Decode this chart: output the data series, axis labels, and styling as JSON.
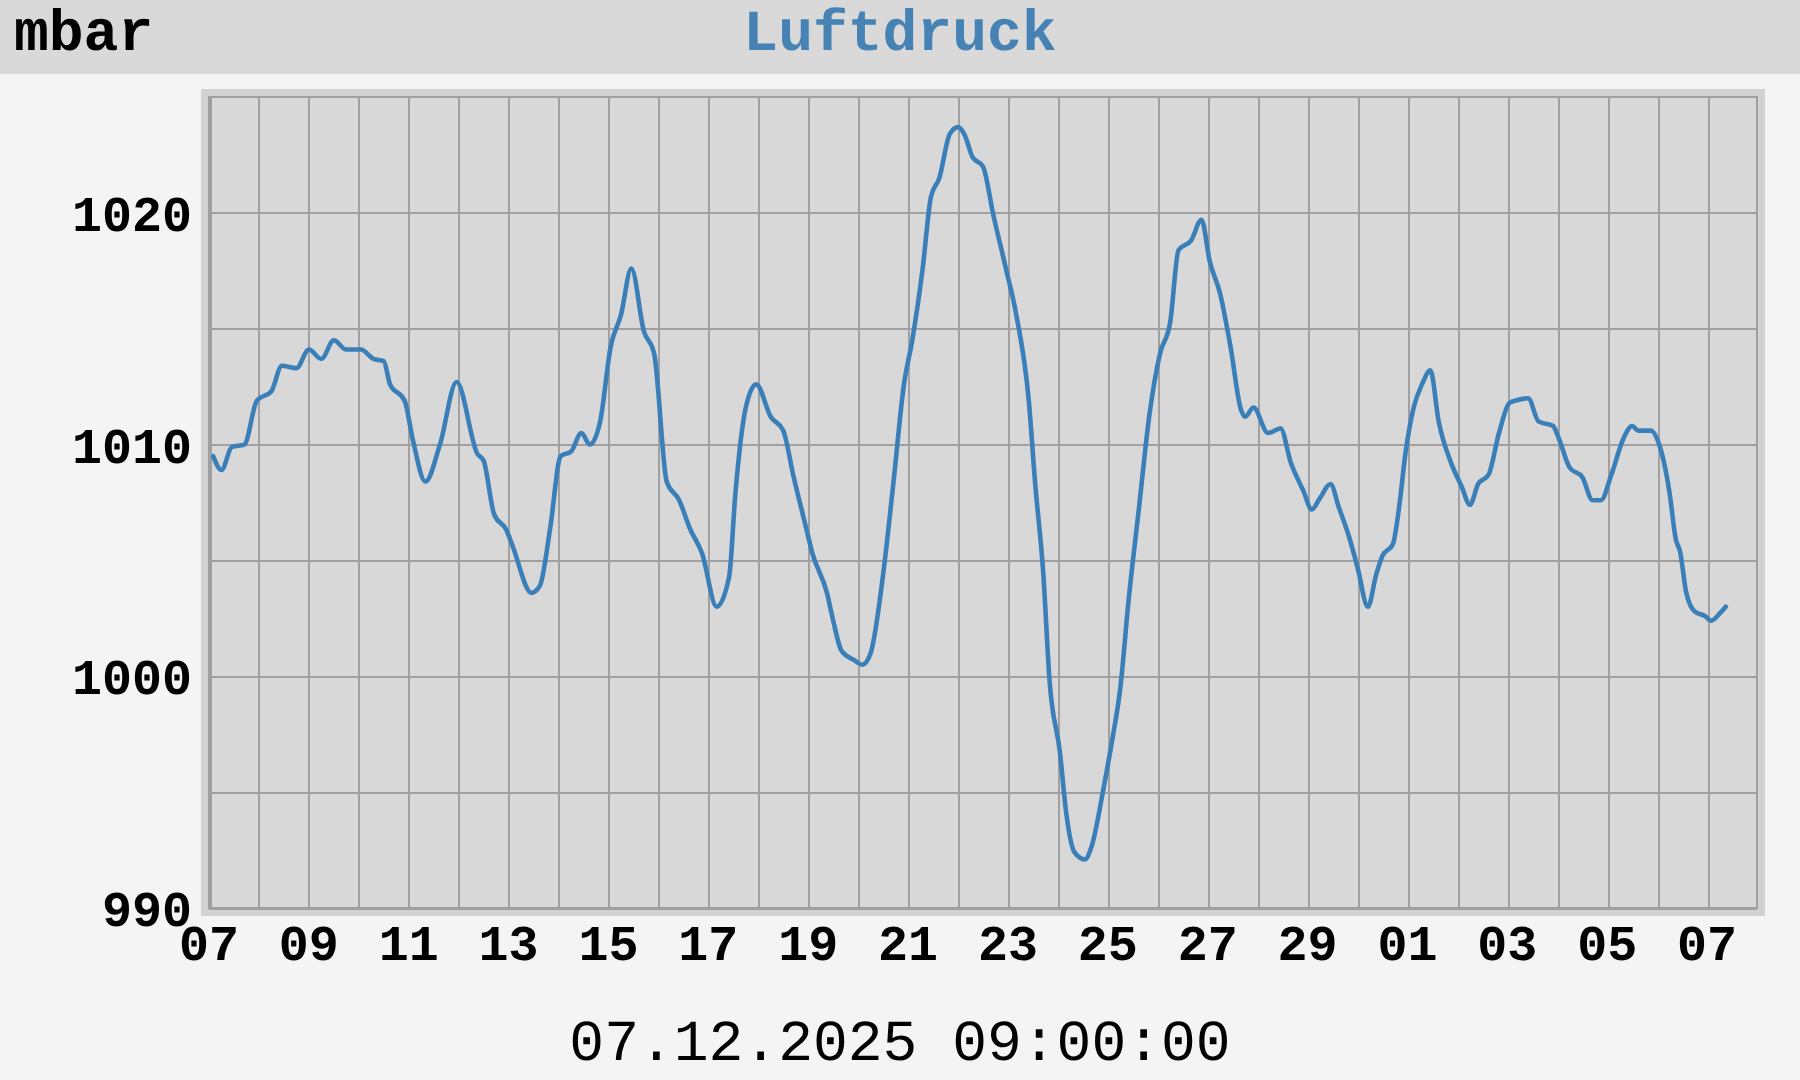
{
  "chart_data": {
    "type": "line",
    "title": "Luftdruck",
    "ylabel": "mbar",
    "annotations": [
      "07.12.2025 09:00:00"
    ],
    "x": [
      "2025-11-07T02:00",
      "2025-11-07T06:00",
      "2025-11-07T11:00",
      "2025-11-07T17:00",
      "2025-11-07T23:00",
      "2025-11-08T06:00",
      "2025-11-08T11:00",
      "2025-11-08T18:00",
      "2025-11-09T00:00",
      "2025-11-09T06:00",
      "2025-11-09T12:00",
      "2025-11-09T18:00",
      "2025-11-10T01:00",
      "2025-11-10T07:00",
      "2025-11-10T12:00",
      "2025-11-10T15:00",
      "2025-11-10T22:00",
      "2025-11-11T02:00",
      "2025-11-11T08:00",
      "2025-11-11T15:00",
      "2025-11-11T23:00",
      "2025-11-12T09:00",
      "2025-11-12T12:00",
      "2025-11-12T17:00",
      "2025-11-12T23:00",
      "2025-11-13T02:00",
      "2025-11-13T11:00",
      "2025-11-13T15:00",
      "2025-11-13T20:00",
      "2025-11-14T01:00",
      "2025-11-14T06:00",
      "2025-11-14T11:00",
      "2025-11-14T15:00",
      "2025-11-14T20:00",
      "2025-11-15T01:00",
      "2025-11-15T06:00",
      "2025-11-15T11:00",
      "2025-11-15T17:00",
      "2025-11-15T22:00",
      "2025-11-16T04:00",
      "2025-11-16T10:00",
      "2025-11-16T15:00",
      "2025-11-16T21:00",
      "2025-11-17T04:00",
      "2025-11-17T10:00",
      "2025-11-17T13:00",
      "2025-11-17T18:00",
      "2025-11-17T23:00",
      "2025-11-18T06:00",
      "2025-11-18T12:00",
      "2025-11-18T17:00",
      "2025-11-18T23:00",
      "2025-11-19T02:00",
      "2025-11-19T09:00",
      "2025-11-19T12:00",
      "2025-11-19T16:00",
      "2025-11-19T22:00",
      "2025-11-20T02:00",
      "2025-11-20T06:00",
      "2025-11-20T12:00",
      "2025-11-20T17:00",
      "2025-11-20T22:00",
      "2025-11-21T02:00",
      "2025-11-21T07:00",
      "2025-11-21T11:00",
      "2025-11-21T15:00",
      "2025-11-21T20:00",
      "2025-11-22T00:00",
      "2025-11-22T03:00",
      "2025-11-22T07:00",
      "2025-11-22T12:00",
      "2025-11-22T17:00",
      "2025-11-22T23:00",
      "2025-11-23T04:00",
      "2025-11-23T10:00",
      "2025-11-23T13:00",
      "2025-11-23T17:00",
      "2025-11-23T20:00",
      "2025-11-24T01:00",
      "2025-11-24T04:00",
      "2025-11-24T08:00",
      "2025-11-24T13:00",
      "2025-11-24T16:00",
      "2025-11-24T22:00",
      "2025-11-25T02:00",
      "2025-11-25T06:00",
      "2025-11-25T10:00",
      "2025-11-25T15:00",
      "2025-11-25T20:00",
      "2025-11-26T01:00",
      "2025-11-26T06:00",
      "2025-11-26T10:00",
      "2025-11-26T16:00",
      "2025-11-26T21:00",
      "2025-11-27T01:00",
      "2025-11-27T06:00",
      "2025-11-27T11:00",
      "2025-11-27T16:00",
      "2025-11-27T18:00",
      "2025-11-27T22:00",
      "2025-11-28T05:00",
      "2025-11-28T11:00",
      "2025-11-28T16:00",
      "2025-11-28T22:00",
      "2025-11-29T02:00",
      "2025-11-29T06:00",
      "2025-11-29T11:00",
      "2025-11-29T15:00",
      "2025-11-29T20:00",
      "2025-11-30T00:00",
      "2025-11-30T05:00",
      "2025-11-30T09:00",
      "2025-11-30T12:00",
      "2025-11-30T17:00",
      "2025-11-30T20:00",
      "2025-11-30T23:00",
      "2025-12-01T03:00",
      "2025-12-01T07:00",
      "2025-12-01T11:00",
      "2025-12-01T15:00",
      "2025-12-01T21:00",
      "2025-12-02T02:00",
      "2025-12-02T06:00",
      "2025-12-02T10:00",
      "2025-12-02T15:00",
      "2025-12-02T20:00",
      "2025-12-03T01:00",
      "2025-12-03T04:00",
      "2025-12-03T10:00",
      "2025-12-03T15:00",
      "2025-12-03T22:00",
      "2025-12-04T01:00",
      "2025-12-04T06:00",
      "2025-12-04T12:00",
      "2025-12-04T17:00",
      "2025-12-04T21:00",
      "2025-12-05T02:00",
      "2025-12-05T08:00",
      "2025-12-05T12:00",
      "2025-12-05T15:00",
      "2025-12-05T21:00",
      "2025-12-06T01:00",
      "2025-12-06T06:00",
      "2025-12-06T09:00",
      "2025-12-06T11:00",
      "2025-12-06T14:00",
      "2025-12-06T18:00",
      "2025-12-06T23:00",
      "2025-12-07T02:00",
      "2025-12-07T06:00",
      "2025-12-07T09:00"
    ],
    "series": [
      {
        "color": "#3b7fb9",
        "values": [
          1009.5,
          1008.9,
          1009.9,
          1010.0,
          1011.9,
          1012.3,
          1013.4,
          1013.3,
          1014.1,
          1013.7,
          1014.5,
          1014.1,
          1014.1,
          1013.7,
          1013.6,
          1012.6,
          1011.9,
          1010.2,
          1008.4,
          1010.0,
          1012.7,
          1009.6,
          1009.3,
          1007.0,
          1006.3,
          1005.6,
          1003.6,
          1003.9,
          1006.4,
          1009.5,
          1009.7,
          1010.5,
          1010.0,
          1011.0,
          1014.2,
          1015.6,
          1017.6,
          1014.9,
          1013.9,
          1008.4,
          1007.6,
          1006.4,
          1005.3,
          1003.0,
          1004.3,
          1007.9,
          1011.6,
          1012.6,
          1011.2,
          1010.6,
          1008.6,
          1006.4,
          1005.3,
          1003.6,
          1002.4,
          1001.1,
          1000.7,
          1000.5,
          1001.0,
          1004.4,
          1008.4,
          1012.6,
          1014.5,
          1017.6,
          1020.7,
          1021.5,
          1023.4,
          1023.7,
          1023.4,
          1022.4,
          1022.0,
          1019.9,
          1017.6,
          1015.6,
          1011.9,
          1008.4,
          1004.4,
          999.8,
          996.7,
          994.1,
          992.4,
          992.1,
          992.6,
          995.2,
          997.2,
          999.5,
          1003.3,
          1007.3,
          1011.3,
          1013.9,
          1015.3,
          1018.4,
          1018.8,
          1019.7,
          1017.9,
          1016.5,
          1014.2,
          1011.5,
          1011.2,
          1011.6,
          1010.5,
          1010.7,
          1009.2,
          1008.0,
          1007.2,
          1007.7,
          1008.3,
          1007.3,
          1006.0,
          1004.7,
          1003.0,
          1004.4,
          1005.2,
          1005.7,
          1007.3,
          1009.6,
          1011.6,
          1012.6,
          1013.2,
          1011.0,
          1009.2,
          1008.2,
          1007.4,
          1008.3,
          1008.7,
          1010.5,
          1011.8,
          1011.9,
          1012.0,
          1011.0,
          1010.8,
          1010.2,
          1009.0,
          1008.6,
          1007.6,
          1007.6,
          1008.7,
          1010.3,
          1010.8,
          1010.6,
          1010.6,
          1010.0,
          1007.9,
          1005.9,
          1005.4,
          1003.6,
          1002.8,
          1002.6,
          1002.4,
          1002.7,
          1003.0
        ]
      }
    ],
    "xlim": [
      "2025-11-07T00:00",
      "2025-12-08T00:00"
    ],
    "xticks": [
      {
        "value": "2025-11-07",
        "label": "07"
      },
      {
        "value": "2025-11-08",
        "label": null
      },
      {
        "value": "2025-11-09",
        "label": "09"
      },
      {
        "value": "2025-11-10",
        "label": null
      },
      {
        "value": "2025-11-11",
        "label": "11"
      },
      {
        "value": "2025-11-12",
        "label": null
      },
      {
        "value": "2025-11-13",
        "label": "13"
      },
      {
        "value": "2025-11-14",
        "label": null
      },
      {
        "value": "2025-11-15",
        "label": "15"
      },
      {
        "value": "2025-11-16",
        "label": null
      },
      {
        "value": "2025-11-17",
        "label": "17"
      },
      {
        "value": "2025-11-18",
        "label": null
      },
      {
        "value": "2025-11-19",
        "label": "19"
      },
      {
        "value": "2025-11-20",
        "label": null
      },
      {
        "value": "2025-11-21",
        "label": "21"
      },
      {
        "value": "2025-11-22",
        "label": null
      },
      {
        "value": "2025-11-23",
        "label": "23"
      },
      {
        "value": "2025-11-24",
        "label": null
      },
      {
        "value": "2025-11-25",
        "label": "25"
      },
      {
        "value": "2025-11-26",
        "label": null
      },
      {
        "value": "2025-11-27",
        "label": "27"
      },
      {
        "value": "2025-11-28",
        "label": null
      },
      {
        "value": "2025-11-29",
        "label": "29"
      },
      {
        "value": "2025-11-30",
        "label": null
      },
      {
        "value": "2025-12-01",
        "label": "01"
      },
      {
        "value": "2025-12-02",
        "label": null
      },
      {
        "value": "2025-12-03",
        "label": "03"
      },
      {
        "value": "2025-12-04",
        "label": null
      },
      {
        "value": "2025-12-05",
        "label": "05"
      },
      {
        "value": "2025-12-06",
        "label": null
      },
      {
        "value": "2025-12-07",
        "label": "07"
      }
    ],
    "ylim": [
      990,
      1025
    ],
    "yticks": [
      990,
      {
        "value": 995,
        "label": null
      },
      1000,
      {
        "value": 1005,
        "label": null
      },
      1010,
      {
        "value": 1015,
        "label": null
      },
      1020
    ],
    "grid": true,
    "line_style": "solid"
  }
}
